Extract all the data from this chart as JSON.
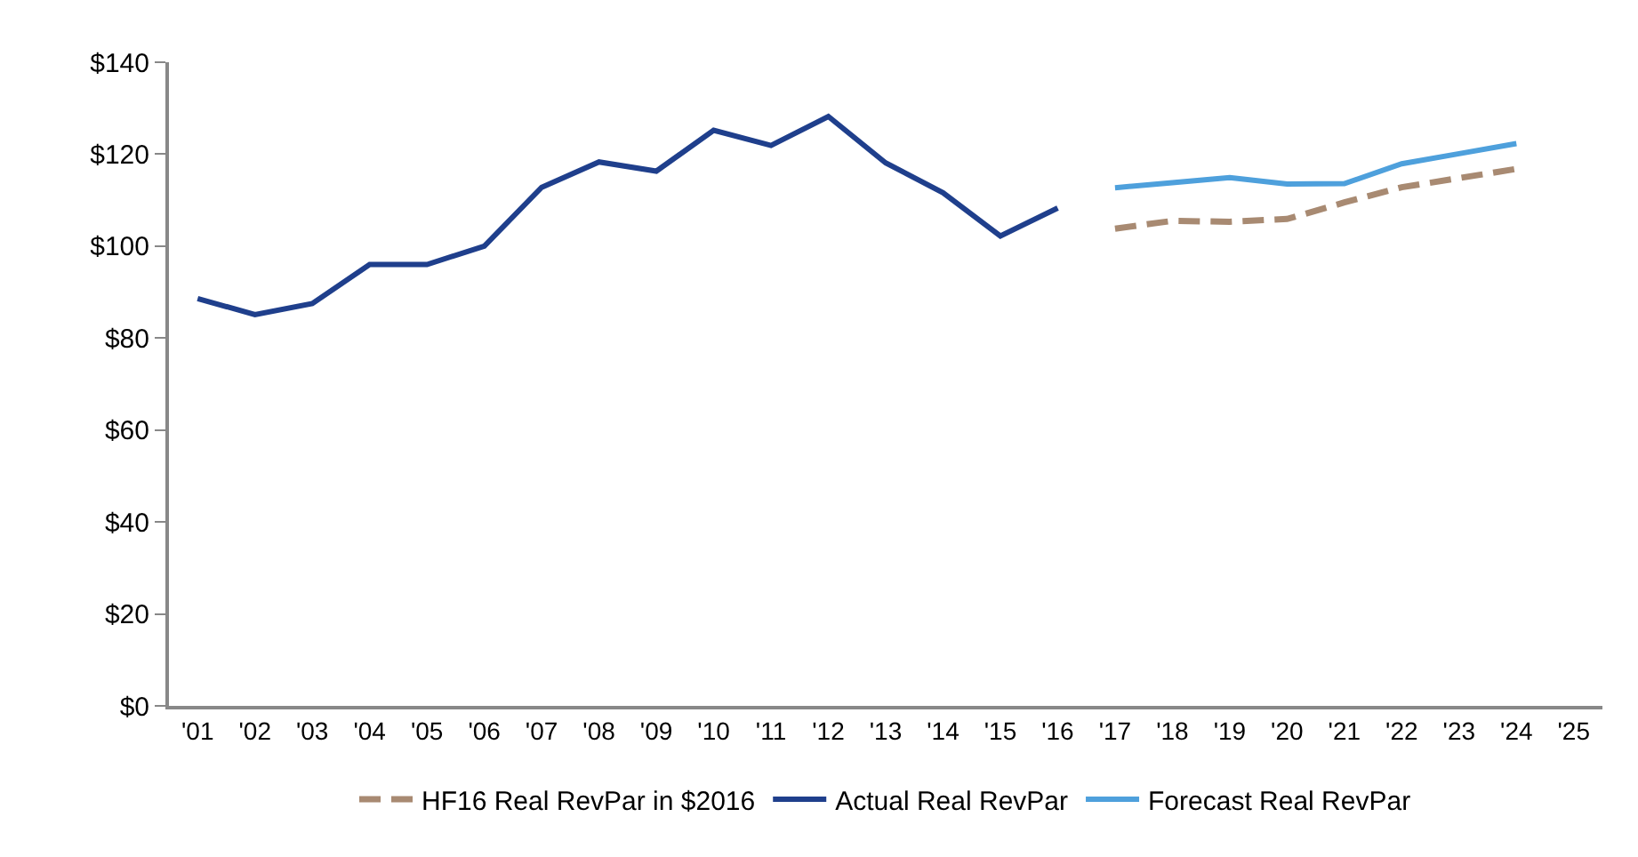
{
  "chart_data": {
    "type": "line",
    "categories": [
      "'01",
      "'02",
      "'03",
      "'04",
      "'05",
      "'06",
      "'07",
      "'08",
      "'09",
      "'10",
      "'11",
      "'12",
      "'13",
      "'14",
      "'15",
      "'16",
      "'17",
      "'18",
      "'19",
      "'20",
      "'21",
      "'22",
      "'23",
      "'24",
      "'25"
    ],
    "series": [
      {
        "name": "HF16 Real RevPar in $2016",
        "color": "#a88a72",
        "line_style": "dashed",
        "values": [
          null,
          null,
          null,
          null,
          null,
          null,
          null,
          null,
          null,
          null,
          null,
          null,
          null,
          null,
          null,
          null,
          103.8,
          105.5,
          105.3,
          105.9,
          109.5,
          112.8,
          114.8,
          116.8,
          null
        ]
      },
      {
        "name": "Actual Real RevPar",
        "color": "#1f3f8c",
        "line_style": "solid",
        "values": [
          88.6,
          85.1,
          87.5,
          96.0,
          96.0,
          100.0,
          112.8,
          118.3,
          116.3,
          125.2,
          121.9,
          128.2,
          118.1,
          111.6,
          102.2,
          108.3,
          null,
          null,
          null,
          null,
          null,
          null,
          null,
          null,
          null
        ]
      },
      {
        "name": "Forecast Real RevPar",
        "color": "#4ea0dc",
        "line_style": "solid",
        "values": [
          null,
          null,
          null,
          null,
          null,
          null,
          null,
          null,
          null,
          null,
          null,
          null,
          null,
          null,
          null,
          null,
          112.7,
          113.8,
          114.9,
          113.5,
          113.6,
          117.9,
          120.1,
          122.3,
          null
        ]
      }
    ],
    "ylim": [
      0,
      140
    ],
    "yticks": [
      {
        "value": 0,
        "label": "$0"
      },
      {
        "value": 20,
        "label": "$20"
      },
      {
        "value": 40,
        "label": "$40"
      },
      {
        "value": 60,
        "label": "$60"
      },
      {
        "value": 80,
        "label": "$80"
      },
      {
        "value": 100,
        "label": "$100"
      },
      {
        "value": 120,
        "label": "$120"
      },
      {
        "value": 140,
        "label": "$140"
      }
    ],
    "legend": "bottom",
    "marker": "none"
  }
}
